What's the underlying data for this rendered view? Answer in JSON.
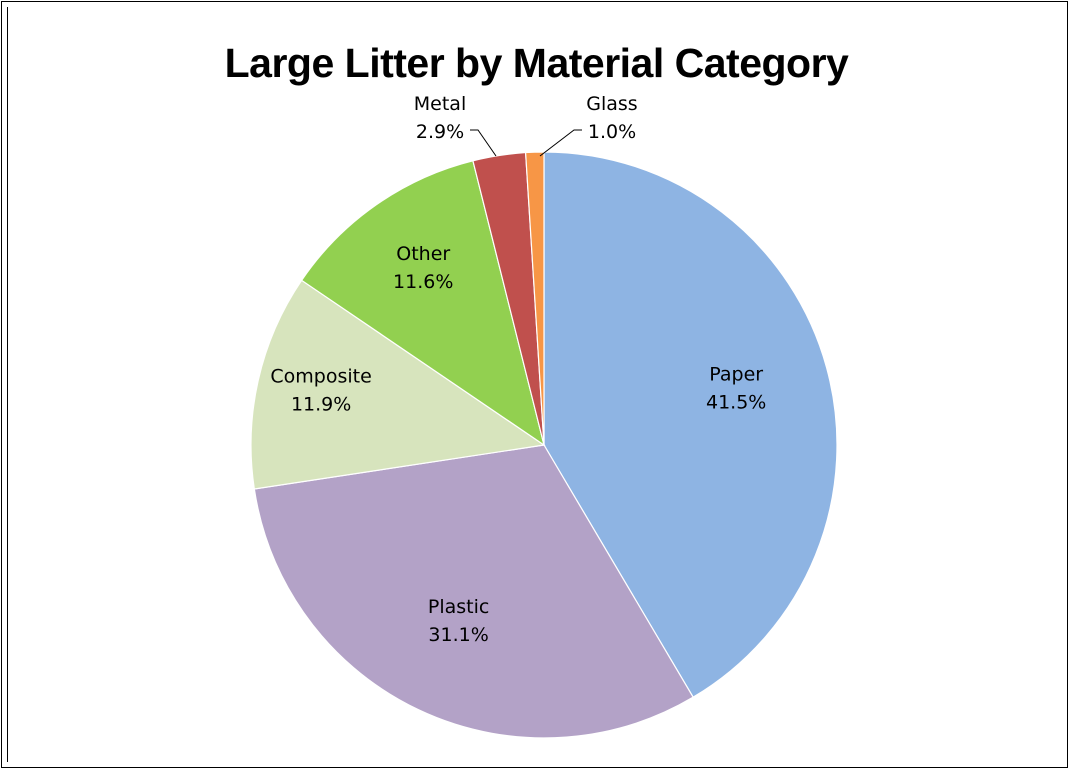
{
  "chart_data": {
    "type": "pie",
    "title": "Large Litter by Material Category",
    "slices": [
      {
        "label": "Paper",
        "value": 41.5,
        "pct": "41.5%",
        "color": "#8eb4e3"
      },
      {
        "label": "Plastic",
        "value": 31.1,
        "pct": "31.1%",
        "color": "#b3a2c7"
      },
      {
        "label": "Composite",
        "value": 11.9,
        "pct": "11.9%",
        "color": "#d7e4bd"
      },
      {
        "label": "Other",
        "value": 11.6,
        "pct": "11.6%",
        "color": "#92d050"
      },
      {
        "label": "Metal",
        "value": 2.9,
        "pct": "2.9%",
        "color": "#c0504d"
      },
      {
        "label": "Glass",
        "value": 1.0,
        "pct": "1.0%",
        "color": "#f79646"
      }
    ],
    "legend": "none",
    "data_labels": "category name and percentage"
  }
}
